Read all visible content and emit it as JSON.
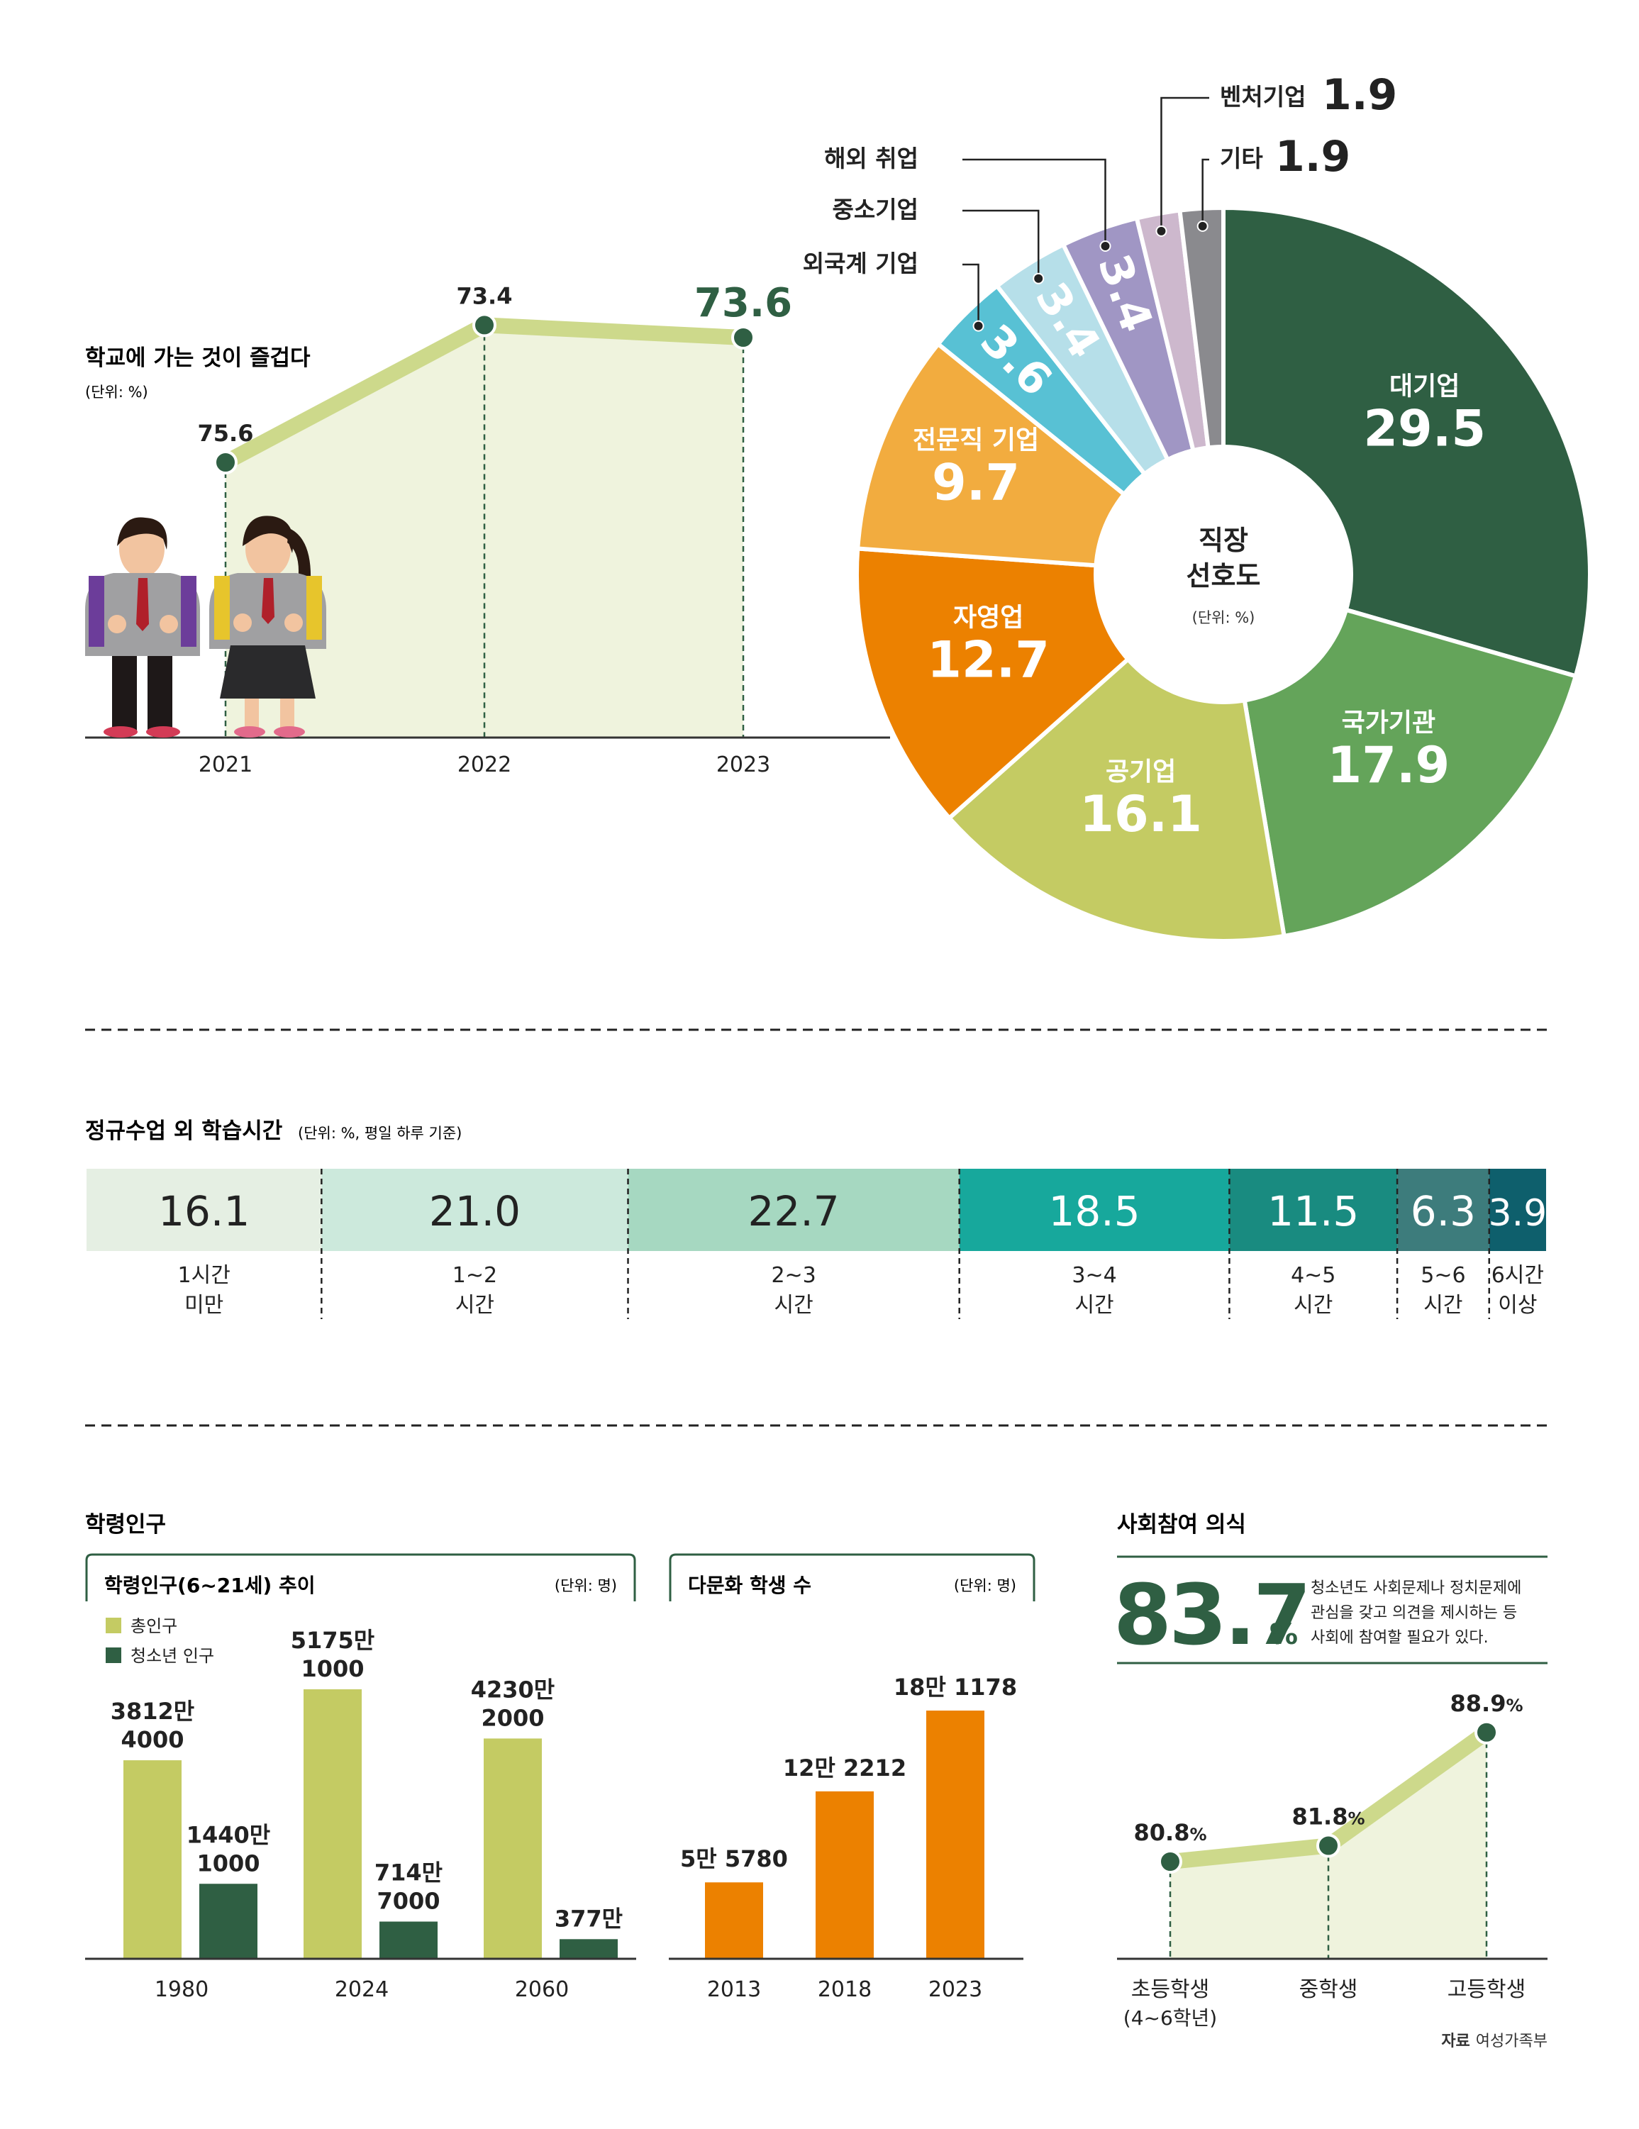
{
  "colors": {
    "dark_green": "#2f5f43",
    "mid_green": "#64a45a",
    "olive": "#c4cb63",
    "light_fill": "#eff3dd",
    "line_olive": "#cdd98b",
    "orange": "#ec8100",
    "light_orange": "#f2ac3f",
    "cyan": "#58c1d4",
    "pale_blue": "#b6dfe9",
    "lavender": "#a096c4",
    "pale_pink": "#cdb8cd",
    "gray": "#8a8a8e"
  },
  "school_joy": {
    "title": "학교에 가는 것이 즐겁다",
    "unit": "(단위: %)",
    "chart_data": {
      "type": "line",
      "x": [
        "2021",
        "2022",
        "2023"
      ],
      "values": [
        75.6,
        73.4,
        73.6
      ],
      "labels": [
        "75.6",
        "73.4",
        "73.6"
      ]
    }
  },
  "job_pref": {
    "center_title_1": "직장",
    "center_title_2": "선호도",
    "unit": "(단위: %)",
    "chart_data": {
      "type": "pie",
      "slices": [
        {
          "name": "대기업",
          "value": 29.5,
          "label": "29.5",
          "color": "#2f5f43"
        },
        {
          "name": "국가기관",
          "value": 17.9,
          "label": "17.9",
          "color": "#64a45a"
        },
        {
          "name": "공기업",
          "value": 16.1,
          "label": "16.1",
          "color": "#c4cb63"
        },
        {
          "name": "자영업",
          "value": 12.7,
          "label": "12.7",
          "color": "#ec8100"
        },
        {
          "name": "전문직 기업",
          "value": 9.7,
          "label": "9.7",
          "color": "#f2ac3f"
        },
        {
          "name": "외국계 기업",
          "value": 3.6,
          "label": "3.6",
          "color": "#58c1d4"
        },
        {
          "name": "중소기업",
          "value": 3.4,
          "label": "3.4",
          "color": "#b6dfe9"
        },
        {
          "name": "해외 취업",
          "value": 3.4,
          "label": "3.4",
          "color": "#a096c4"
        },
        {
          "name": "벤처기업",
          "value": 1.9,
          "label": "1.9",
          "color": "#cdb8cd"
        },
        {
          "name": "기타",
          "value": 1.9,
          "label": "1.9",
          "color": "#8a8a8e"
        }
      ]
    }
  },
  "study_time": {
    "title": "정규수업 외 학습시간",
    "unit": "(단위: %, 평일 하루 기준)",
    "chart_data": {
      "type": "bar",
      "stacked": true,
      "values": [
        16.1,
        21.0,
        22.7,
        18.5,
        11.5,
        6.3,
        3.9
      ],
      "labels": [
        "16.1",
        "21.0",
        "22.7",
        "18.5",
        "11.5",
        "6.3",
        "3.9"
      ],
      "categories_line1": [
        "1시간",
        "1~2",
        "2~3",
        "3~4",
        "4~5",
        "5~6",
        "6시간"
      ],
      "categories_line2": [
        "미만",
        "시간",
        "시간",
        "시간",
        "시간",
        "시간",
        "이상"
      ],
      "colors": [
        "#e5efe3",
        "#cce9dc",
        "#a6d8c1",
        "#17a89c",
        "#198b80",
        "#3d7c7c",
        "#0e5f6c"
      ],
      "text_colors": [
        "#222222",
        "#222222",
        "#222222",
        "#ffffff",
        "#ffffff",
        "#ffffff",
        "#ffffff"
      ]
    }
  },
  "school_pop": {
    "title": "학령인구",
    "sub_title": "학령인구(6~21세) 추이",
    "unit": "(단위: 명)",
    "legend_total": "총인구",
    "legend_youth": "청소년 인구",
    "chart_data": {
      "type": "bar",
      "categories": [
        "1980",
        "2024",
        "2060"
      ],
      "series": [
        {
          "name": "총인구",
          "values": [
            38124000,
            51751000,
            42302000
          ],
          "labels_1": [
            "3812만",
            "5175만",
            "4230만"
          ],
          "labels_2": [
            "4000",
            "1000",
            "2000"
          ]
        },
        {
          "name": "청소년 인구",
          "values": [
            14401000,
            7147000,
            3770000
          ],
          "labels_1": [
            "1440만",
            "714만",
            "377만"
          ],
          "labels_2": [
            "1000",
            "7000",
            ""
          ]
        }
      ]
    }
  },
  "multicultural": {
    "sub_title": "다문화 학생 수",
    "unit": "(단위: 명)",
    "chart_data": {
      "type": "bar",
      "categories": [
        "2013",
        "2018",
        "2023"
      ],
      "values": [
        55780,
        122212,
        181178
      ],
      "labels": [
        "5만 5780",
        "12만 2212",
        "18만 1178"
      ]
    }
  },
  "social": {
    "title": "사회참여 의식",
    "big_number": "83.7",
    "big_unit": "%",
    "note_1": "청소년도 사회문제나 정치문제에",
    "note_2": "관심을 갖고 의견을 제시하는 등",
    "note_3": "사회에 참여할 필요가 있다.",
    "chart_data": {
      "type": "line",
      "x": [
        "초등학생",
        "중학생",
        "고등학생"
      ],
      "x_sub": [
        "(4~6학년)",
        "",
        ""
      ],
      "values": [
        80.8,
        81.8,
        88.9
      ],
      "labels": [
        "80.8",
        "81.8",
        "88.9"
      ],
      "suffix": "%"
    }
  },
  "source_label": "자료",
  "source_text": "여성가족부"
}
